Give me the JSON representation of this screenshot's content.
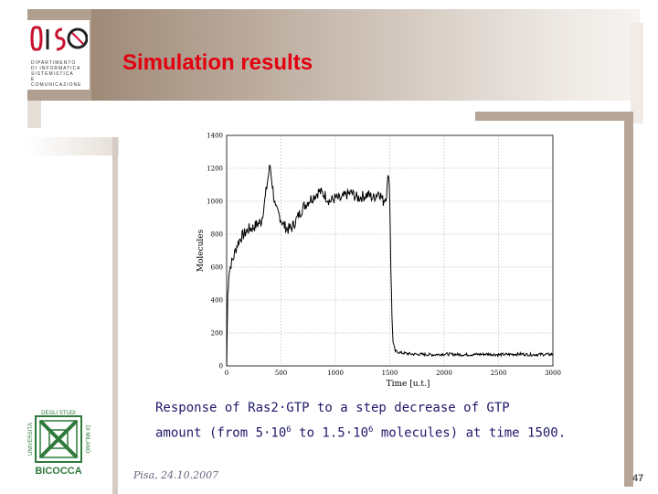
{
  "slide": {
    "title": "Simulation results",
    "caption_line1": "Response of Ras2·GTP to a step decrease of GTP",
    "caption_line2_a": "amount (from 5·10",
    "caption_sup_a": "6",
    "caption_line2_b": " to 1.5·10",
    "caption_sup_b": "6",
    "caption_line2_c": " molecules) at time 1500.",
    "footer_date": "Pisa, 24.10.2007",
    "page_number": "47"
  },
  "logos": {
    "top_left": {
      "icon": "disco-logo",
      "lines": [
        "DIPARTIMENTO",
        "DI INFORMATICA",
        "SISTEMISTICA",
        "E COMUNICAZIONE"
      ]
    },
    "bottom_left": {
      "icon": "bicocca-logo",
      "side_left": "UNIVERSITÀ",
      "top": "DEGLI STUDI",
      "side_right": "DI MILANO",
      "bottom": "BICOCCA"
    }
  },
  "colors": {
    "title": "#e3000f",
    "caption": "#1f1a6b",
    "bicocca_green": "#2f7a3a",
    "disco_red": "#c8102e"
  },
  "chart_data": {
    "type": "line",
    "xlabel": "Time [u.t.]",
    "ylabel": "Molecules",
    "xlim": [
      0,
      3000
    ],
    "ylim": [
      0,
      1400
    ],
    "x_ticks": [
      0,
      500,
      1000,
      1500,
      2000,
      2500,
      3000
    ],
    "y_ticks": [
      0,
      200,
      400,
      600,
      800,
      1000,
      1200,
      1400
    ],
    "grid": true,
    "series": [
      {
        "x": [
          0,
          10,
          20,
          40,
          60,
          80,
          100,
          130,
          160,
          200,
          240,
          280,
          320,
          350,
          380,
          400,
          420,
          450,
          480,
          520,
          560,
          600,
          650,
          700,
          750,
          800,
          850,
          900,
          950,
          1000,
          1050,
          1100,
          1150,
          1200,
          1250,
          1300,
          1350,
          1400,
          1440,
          1470,
          1490,
          1500,
          1510,
          1520,
          1530,
          1550,
          1600,
          1700,
          1800,
          1900,
          2000,
          2100,
          2200,
          2300,
          2400,
          2500,
          2600,
          2700,
          2800,
          2900,
          3000
        ],
        "y": [
          0,
          430,
          560,
          620,
          650,
          700,
          740,
          780,
          800,
          830,
          840,
          860,
          880,
          1000,
          1140,
          1220,
          1100,
          950,
          920,
          860,
          830,
          840,
          900,
          960,
          1000,
          1030,
          1060,
          1040,
          1000,
          1020,
          1010,
          1040,
          1050,
          1020,
          1030,
          1040,
          1020,
          1060,
          1000,
          1040,
          1180,
          1020,
          600,
          300,
          140,
          90,
          80,
          72,
          70,
          68,
          72,
          70,
          68,
          70,
          72,
          68,
          70,
          72,
          68,
          70,
          70
        ]
      }
    ]
  }
}
